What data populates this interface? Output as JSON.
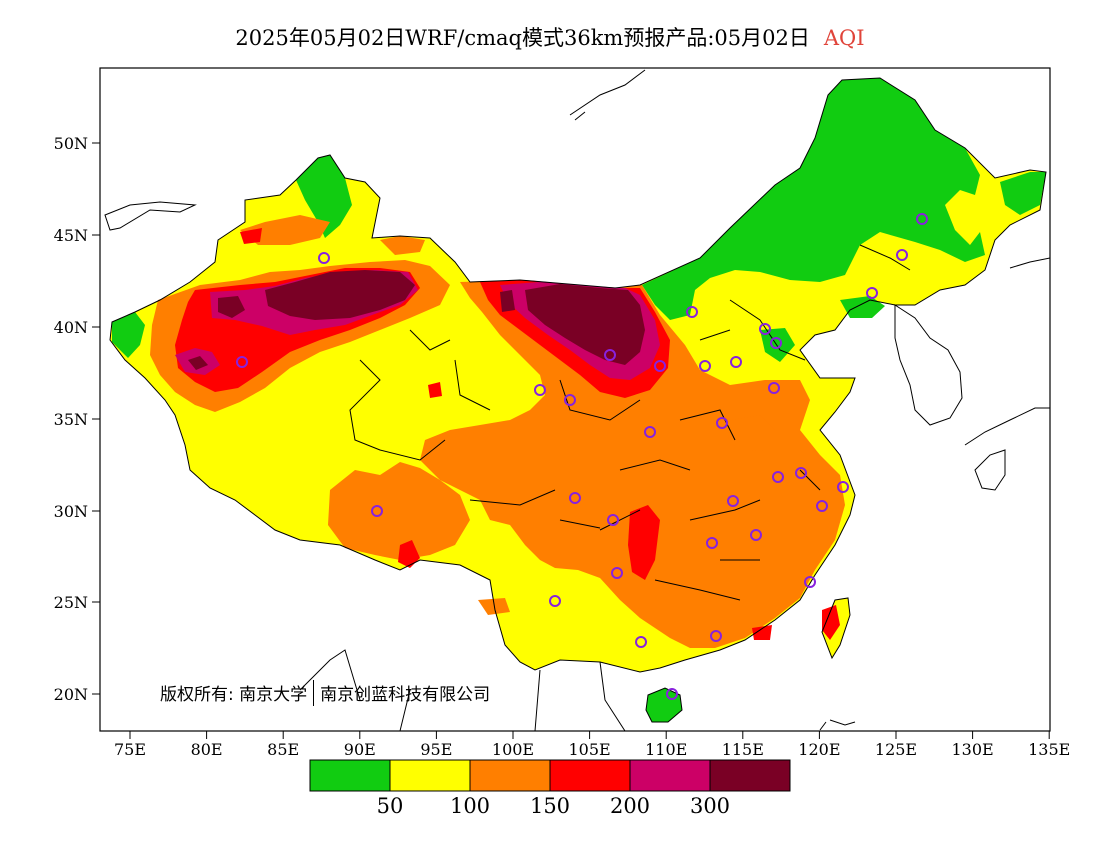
{
  "title": {
    "main": "2025年05月02日WRF/cmaq模式36km预报产品:05月02日",
    "variable": "AQI"
  },
  "copyright": {
    "owner_label": "版权所有:",
    "org1": "南京大学",
    "org2": "南京创蓝科技有限公司"
  },
  "axes": {
    "lat_labels": [
      "50N",
      "45N",
      "40N",
      "35N",
      "30N",
      "25N",
      "20N"
    ],
    "lon_labels": [
      "75E",
      "80E",
      "85E",
      "90E",
      "95E",
      "100E",
      "105E",
      "110E",
      "115E",
      "120E",
      "125E",
      "130E",
      "135E"
    ]
  },
  "legend": {
    "colors": [
      "#11cc11",
      "#ffff00",
      "#ff7f00",
      "#ff0000",
      "#cc0066",
      "#7a0025"
    ],
    "thresholds": [
      "50",
      "100",
      "150",
      "200",
      "300"
    ]
  },
  "colors": {
    "good": "#11cc11",
    "moderate": "#ffff00",
    "sensitive": "#ff7f00",
    "unhealthy": "#ff0000",
    "very_unhealthy": "#cc0066",
    "hazardous": "#7a0025",
    "station_marker": "#8822dd"
  }
}
